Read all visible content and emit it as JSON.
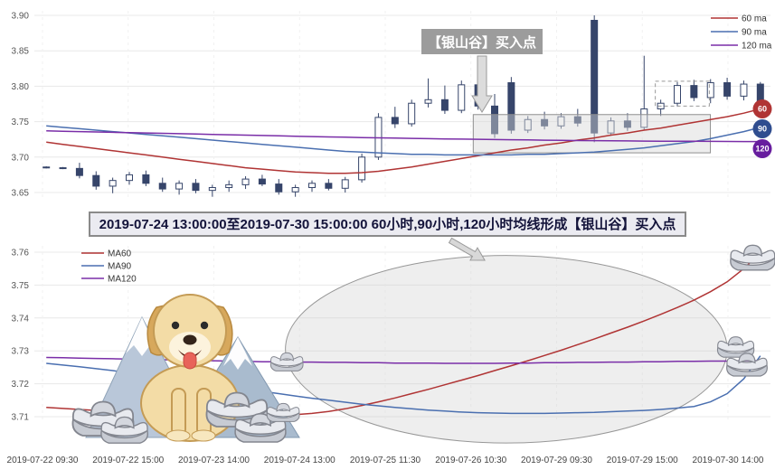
{
  "banner": {
    "text": "2019-07-24 13:00:00至2019-07-30 15:00:00 60小时,90小时,120小时均线形成【银山谷】买入点"
  },
  "x_axis": {
    "labels": [
      "2019-07-22 09:30",
      "2019-07-22 15:00",
      "2019-07-23 14:00",
      "2019-07-24 13:00",
      "2019-07-25 11:30",
      "2019-07-26 10:30",
      "2019-07-29 09:30",
      "2019-07-29 15:00",
      "2019-07-30 14:00"
    ]
  },
  "style": {
    "grid": "#e8e8e8",
    "vgrid": "#f1f1f1",
    "axis_text": "#555555",
    "legend_text": "#333333"
  },
  "decorations": [
    "golden-retriever-dog",
    "snow-mountains",
    "silver-ingots"
  ],
  "chart_data": [
    {
      "id": "hourly-candlestick",
      "type": "candlestick",
      "title": "",
      "ylim": [
        3.64,
        3.905
      ],
      "yticks": [
        3.9,
        3.85,
        3.8,
        3.75,
        3.7,
        3.65
      ],
      "candle_color": "#36456a",
      "candles": [
        [
          3.686,
          3.687,
          3.684,
          3.685
        ],
        [
          3.685,
          3.686,
          3.683,
          3.684
        ],
        [
          3.684,
          3.692,
          3.67,
          3.674
        ],
        [
          3.674,
          3.68,
          3.654,
          3.659
        ],
        [
          3.659,
          3.671,
          3.649,
          3.667
        ],
        [
          3.667,
          3.679,
          3.661,
          3.675
        ],
        [
          3.675,
          3.681,
          3.659,
          3.663
        ],
        [
          3.663,
          3.671,
          3.651,
          3.655
        ],
        [
          3.655,
          3.667,
          3.647,
          3.663
        ],
        [
          3.663,
          3.669,
          3.649,
          3.653
        ],
        [
          3.653,
          3.661,
          3.644,
          3.657
        ],
        [
          3.657,
          3.667,
          3.651,
          3.661
        ],
        [
          3.661,
          3.673,
          3.655,
          3.669
        ],
        [
          3.669,
          3.675,
          3.659,
          3.662
        ],
        [
          3.662,
          3.669,
          3.647,
          3.651
        ],
        [
          3.651,
          3.661,
          3.644,
          3.657
        ],
        [
          3.657,
          3.667,
          3.651,
          3.663
        ],
        [
          3.663,
          3.669,
          3.653,
          3.656
        ],
        [
          3.656,
          3.672,
          3.65,
          3.668
        ],
        [
          3.668,
          3.705,
          3.664,
          3.7
        ],
        [
          3.7,
          3.762,
          3.696,
          3.756
        ],
        [
          3.756,
          3.771,
          3.741,
          3.747
        ],
        [
          3.747,
          3.781,
          3.743,
          3.776
        ],
        [
          3.776,
          3.811,
          3.77,
          3.781
        ],
        [
          3.781,
          3.801,
          3.761,
          3.766
        ],
        [
          3.766,
          3.808,
          3.762,
          3.802
        ],
        [
          3.802,
          3.81,
          3.767,
          3.772
        ],
        [
          3.772,
          3.789,
          3.727,
          3.733
        ],
        [
          3.805,
          3.813,
          3.733,
          3.738
        ],
        [
          3.738,
          3.758,
          3.734,
          3.753
        ],
        [
          3.753,
          3.764,
          3.739,
          3.744
        ],
        [
          3.744,
          3.762,
          3.74,
          3.757
        ],
        [
          3.757,
          3.768,
          3.743,
          3.748
        ],
        [
          3.893,
          3.9,
          3.721,
          3.734
        ],
        [
          3.734,
          3.756,
          3.73,
          3.751
        ],
        [
          3.751,
          3.762,
          3.737,
          3.742
        ],
        [
          3.742,
          3.843,
          3.738,
          3.768
        ],
        [
          3.768,
          3.781,
          3.758,
          3.776
        ],
        [
          3.776,
          3.806,
          3.771,
          3.801
        ],
        [
          3.801,
          3.809,
          3.779,
          3.784
        ],
        [
          3.784,
          3.81,
          3.776,
          3.805
        ],
        [
          3.805,
          3.812,
          3.781,
          3.786
        ],
        [
          3.786,
          3.808,
          3.78,
          3.803
        ],
        [
          3.803,
          3.806,
          3.76,
          3.776
        ]
      ],
      "series": [
        {
          "name": "60 ma",
          "color": "#b03434",
          "values": [
            3.721,
            3.718,
            3.715,
            3.712,
            3.709,
            3.706,
            3.703,
            3.7,
            3.697,
            3.694,
            3.691,
            3.688,
            3.685,
            3.683,
            3.681,
            3.679,
            3.678,
            3.677,
            3.677,
            3.678,
            3.68,
            3.683,
            3.686,
            3.69,
            3.694,
            3.698,
            3.702,
            3.706,
            3.71,
            3.713,
            3.717,
            3.72,
            3.724,
            3.727,
            3.731,
            3.734,
            3.738,
            3.741,
            3.745,
            3.749,
            3.753,
            3.757,
            3.762,
            3.768
          ]
        },
        {
          "name": "90 ma",
          "color": "#4a6fb0",
          "values": [
            3.744,
            3.742,
            3.74,
            3.738,
            3.736,
            3.734,
            3.732,
            3.73,
            3.728,
            3.726,
            3.724,
            3.722,
            3.72,
            3.718,
            3.716,
            3.714,
            3.712,
            3.71,
            3.708,
            3.707,
            3.706,
            3.705,
            3.704,
            3.704,
            3.703,
            3.703,
            3.703,
            3.703,
            3.703,
            3.704,
            3.704,
            3.705,
            3.706,
            3.707,
            3.709,
            3.711,
            3.713,
            3.716,
            3.719,
            3.722,
            3.726,
            3.731,
            3.736,
            3.742
          ]
        },
        {
          "name": "120 ma",
          "color": "#7a2ea8",
          "values": [
            3.737,
            3.7365,
            3.736,
            3.7355,
            3.735,
            3.7345,
            3.734,
            3.7335,
            3.733,
            3.7325,
            3.732,
            3.7315,
            3.731,
            3.7305,
            3.73,
            3.7295,
            3.729,
            3.7285,
            3.728,
            3.7276,
            3.7272,
            3.7268,
            3.7264,
            3.726,
            3.7257,
            3.7254,
            3.7251,
            3.7248,
            3.7245,
            3.7242,
            3.7239,
            3.7236,
            3.7234,
            3.7232,
            3.723,
            3.7228,
            3.7226,
            3.7225,
            3.7224,
            3.7223,
            3.7222,
            3.7221,
            3.722,
            3.722
          ]
        }
      ],
      "legend": [
        {
          "label": "60 ma",
          "color": "#b03434"
        },
        {
          "label": "90 ma",
          "color": "#4a6fb0"
        },
        {
          "label": "120 ma",
          "color": "#7a2ea8"
        }
      ],
      "end_badges": [
        {
          "label": "60",
          "value": 3.768,
          "color": "#b03434"
        },
        {
          "label": "90",
          "value": 3.742,
          "color": "#2f4d8f"
        },
        {
          "label": "120",
          "value": 3.722,
          "color": "#671d9e"
        }
      ],
      "annotation": {
        "text": "【银山谷】买入点",
        "box_color": "#9c9c9c",
        "text_color": "#ffffff"
      },
      "highlight_box": {
        "start_index": 26.2,
        "end_index": 39.5,
        "price_low": 3.706,
        "price_high": 3.76
      },
      "dashed_box": {
        "start_index": 37.0,
        "end_index": 39.6,
        "price_low": 3.772,
        "price_high": 3.807
      }
    },
    {
      "id": "ma-trend",
      "type": "line",
      "title": "",
      "ylim": [
        3.705,
        3.765
      ],
      "yticks": [
        3.76,
        3.75,
        3.74,
        3.73,
        3.72,
        3.71
      ],
      "series": [
        {
          "name": "MA60",
          "color": "#b03434",
          "values": [
            3.7128,
            3.7125,
            3.7122,
            3.7119,
            3.7116,
            3.7113,
            3.711,
            3.7107,
            3.7105,
            3.7103,
            3.7101,
            3.71,
            3.71,
            3.7101,
            3.7103,
            3.7106,
            3.711,
            3.7116,
            3.7124,
            3.7134,
            3.7145,
            3.7157,
            3.717,
            3.7183,
            3.7197,
            3.7211,
            3.7225,
            3.724,
            3.7255,
            3.727,
            3.7286,
            3.7302,
            3.7319,
            3.7336,
            3.7354,
            3.7372,
            3.7391,
            3.7411,
            3.7432,
            3.7454,
            3.748,
            3.751,
            3.755,
            3.7598
          ]
        },
        {
          "name": "MA90",
          "color": "#4a6fb0",
          "values": [
            3.7262,
            3.7257,
            3.7252,
            3.7246,
            3.724,
            3.7233,
            3.7226,
            3.7219,
            3.7212,
            3.7205,
            3.7198,
            3.7191,
            3.7184,
            3.7177,
            3.717,
            3.7163,
            3.7156,
            3.715,
            3.7144,
            3.7138,
            3.7133,
            3.7128,
            3.7124,
            3.712,
            3.7117,
            3.7114,
            3.7112,
            3.7111,
            3.711,
            3.711,
            3.711,
            3.7111,
            3.7112,
            3.7113,
            3.7115,
            3.7117,
            3.7119,
            3.7122,
            3.7126,
            3.7131,
            3.7145,
            3.717,
            3.7215,
            3.7285
          ]
        },
        {
          "name": "MA120",
          "color": "#7a2ea8",
          "values": [
            3.728,
            3.7279,
            3.7278,
            3.7277,
            3.7276,
            3.7275,
            3.7274,
            3.7273,
            3.7272,
            3.7271,
            3.727,
            3.7269,
            3.7268,
            3.7267,
            3.7267,
            3.7266,
            3.7266,
            3.7265,
            3.7265,
            3.7264,
            3.7264,
            3.7263,
            3.7263,
            3.7263,
            3.7262,
            3.7262,
            3.7262,
            3.7262,
            3.7263,
            3.7263,
            3.7264,
            3.7264,
            3.7265,
            3.7265,
            3.7266,
            3.7266,
            3.7267,
            3.7267,
            3.7268,
            3.7268,
            3.7269,
            3.7269,
            3.727,
            3.727
          ]
        }
      ],
      "legend": [
        {
          "label": "MA60",
          "color": "#b03434"
        },
        {
          "label": "MA90",
          "color": "#4a6fb0"
        },
        {
          "label": "MA120",
          "color": "#7a2ea8"
        }
      ],
      "ellipse": {
        "center_index": 27.7,
        "center_price": 3.7305,
        "rx_index": 13.3,
        "ry_price": 0.0285
      }
    }
  ]
}
